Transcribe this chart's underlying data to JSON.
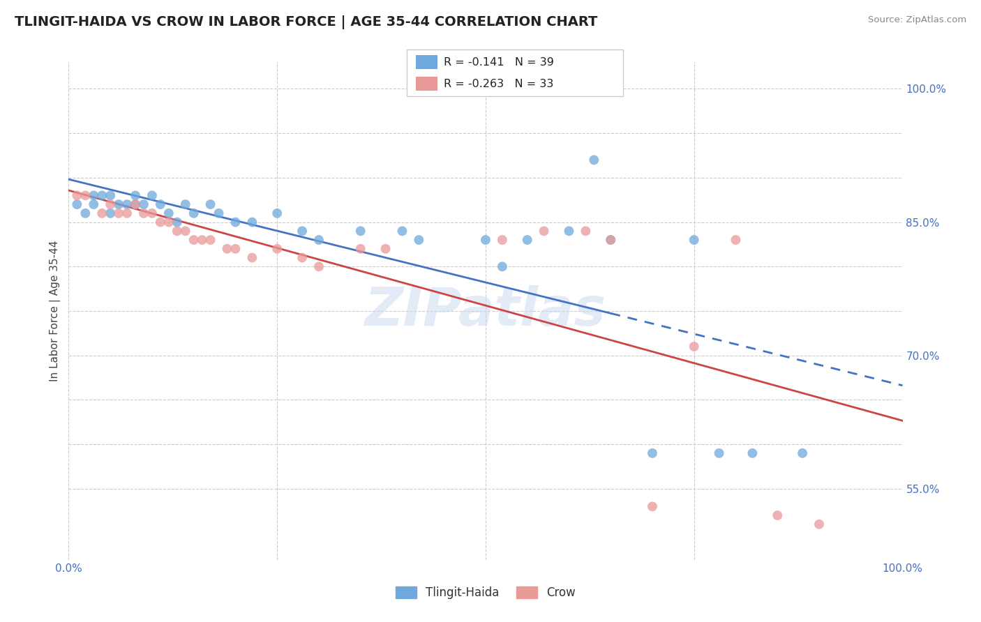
{
  "title": "TLINGIT-HAIDA VS CROW IN LABOR FORCE | AGE 35-44 CORRELATION CHART",
  "source": "Source: ZipAtlas.com",
  "ylabel": "In Labor Force | Age 35-44",
  "xlim": [
    0.0,
    1.0
  ],
  "ylim": [
    0.47,
    1.03
  ],
  "ytick_positions": [
    0.55,
    0.6,
    0.65,
    0.7,
    0.75,
    0.8,
    0.85,
    0.9,
    0.95,
    1.0
  ],
  "ytick_labels": [
    "55.0%",
    "",
    "",
    "70.0%",
    "",
    "",
    "85.0%",
    "",
    "",
    "100.0%"
  ],
  "legend_labels": [
    "Tlingit-Haida",
    "Crow"
  ],
  "tlingit_color": "#6fa8dc",
  "crow_color": "#ea9999",
  "tlingit_R": -0.141,
  "tlingit_N": 39,
  "crow_R": -0.263,
  "crow_N": 33,
  "tlingit_line_color": "#4472c4",
  "crow_line_color": "#cc4444",
  "watermark": "ZIPatlas",
  "tlingit_x": [
    0.01,
    0.02,
    0.03,
    0.03,
    0.04,
    0.05,
    0.05,
    0.06,
    0.07,
    0.08,
    0.08,
    0.09,
    0.1,
    0.11,
    0.12,
    0.13,
    0.14,
    0.15,
    0.17,
    0.18,
    0.2,
    0.22,
    0.25,
    0.28,
    0.3,
    0.35,
    0.4,
    0.42,
    0.5,
    0.52,
    0.55,
    0.6,
    0.63,
    0.65,
    0.7,
    0.75,
    0.78,
    0.82,
    0.88
  ],
  "tlingit_y": [
    0.87,
    0.86,
    0.88,
    0.87,
    0.88,
    0.88,
    0.86,
    0.87,
    0.87,
    0.88,
    0.87,
    0.87,
    0.88,
    0.87,
    0.86,
    0.85,
    0.87,
    0.86,
    0.87,
    0.86,
    0.85,
    0.85,
    0.86,
    0.84,
    0.83,
    0.84,
    0.84,
    0.83,
    0.83,
    0.8,
    0.83,
    0.84,
    0.92,
    0.83,
    0.59,
    0.83,
    0.59,
    0.59,
    0.59
  ],
  "crow_x": [
    0.01,
    0.02,
    0.04,
    0.05,
    0.06,
    0.07,
    0.08,
    0.09,
    0.1,
    0.11,
    0.12,
    0.13,
    0.14,
    0.15,
    0.16,
    0.17,
    0.19,
    0.2,
    0.22,
    0.25,
    0.28,
    0.3,
    0.35,
    0.38,
    0.52,
    0.57,
    0.62,
    0.65,
    0.7,
    0.75,
    0.8,
    0.85,
    0.9
  ],
  "crow_y": [
    0.88,
    0.88,
    0.86,
    0.87,
    0.86,
    0.86,
    0.87,
    0.86,
    0.86,
    0.85,
    0.85,
    0.84,
    0.84,
    0.83,
    0.83,
    0.83,
    0.82,
    0.82,
    0.81,
    0.82,
    0.81,
    0.8,
    0.82,
    0.82,
    0.83,
    0.84,
    0.84,
    0.83,
    0.53,
    0.71,
    0.83,
    0.52,
    0.51
  ]
}
